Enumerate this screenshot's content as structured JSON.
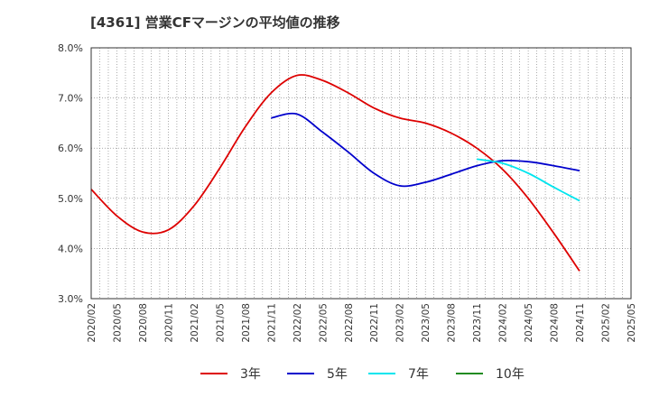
{
  "chart_data": {
    "type": "line",
    "title": "[4361]  営業CFマージンの平均値の推移",
    "x": [
      "2020/02",
      "2020/05",
      "2020/08",
      "2020/11",
      "2021/02",
      "2021/05",
      "2021/08",
      "2021/11",
      "2022/02",
      "2022/05",
      "2022/08",
      "2022/11",
      "2023/02",
      "2023/05",
      "2023/08",
      "2023/11",
      "2024/02",
      "2024/05",
      "2024/08",
      "2024/11",
      "2025/02",
      "2025/05"
    ],
    "yticks": [
      "3.0%",
      "4.0%",
      "5.0%",
      "6.0%",
      "7.0%",
      "8.0%"
    ],
    "ylim": [
      3.0,
      8.0
    ],
    "grid": true,
    "legend_position": "bottom",
    "series": [
      {
        "name": "3年",
        "color": "#dd0000",
        "values": [
          5.18,
          4.65,
          4.33,
          4.37,
          4.85,
          5.6,
          6.43,
          7.1,
          7.45,
          7.35,
          7.1,
          6.8,
          6.6,
          6.5,
          6.3,
          6.0,
          5.58,
          5.0,
          4.3,
          3.55,
          null,
          null
        ]
      },
      {
        "name": "5年",
        "color": "#0000cc",
        "values": [
          null,
          null,
          null,
          null,
          null,
          null,
          null,
          6.6,
          6.68,
          6.32,
          5.92,
          5.5,
          5.25,
          5.32,
          5.48,
          5.65,
          5.75,
          5.73,
          5.65,
          5.55,
          null,
          null
        ]
      },
      {
        "name": "7年",
        "color": "#00e5ee",
        "values": [
          null,
          null,
          null,
          null,
          null,
          null,
          null,
          null,
          null,
          null,
          null,
          null,
          null,
          null,
          null,
          5.78,
          5.7,
          5.5,
          5.22,
          4.95,
          null,
          null
        ]
      },
      {
        "name": "10年",
        "color": "#228b22",
        "values": [
          null,
          null,
          null,
          null,
          null,
          null,
          null,
          null,
          null,
          null,
          null,
          null,
          null,
          null,
          null,
          null,
          null,
          null,
          null,
          null,
          null,
          null
        ]
      }
    ]
  }
}
